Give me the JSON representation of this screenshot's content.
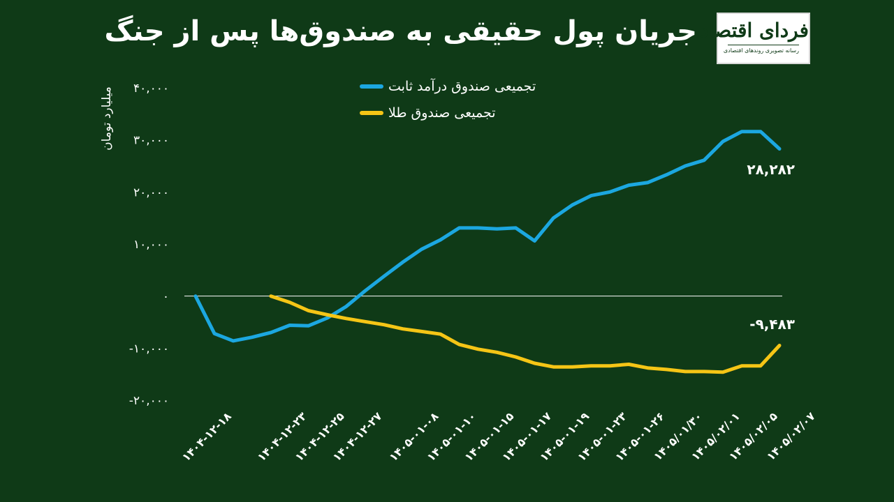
{
  "title": "جریان پول حقیقی به صندوق‌ها پس از جنگ",
  "logo": {
    "name": "فردای اقتصاد",
    "tagline": "رسانه تصویری روندهای اقتصادی"
  },
  "colors": {
    "background": "#0f3a17",
    "fixed_income": "#1ca7e0",
    "gold": "#f5c516",
    "text": "#ffffff"
  },
  "chart_data": {
    "type": "line",
    "ylabel": "میلیارد تومان",
    "ylim": [
      -20000,
      40000
    ],
    "yticks": [
      {
        "value": 40000,
        "label": "۴۰,۰۰۰"
      },
      {
        "value": 30000,
        "label": "۳۰,۰۰۰"
      },
      {
        "value": 20000,
        "label": "۲۰,۰۰۰"
      },
      {
        "value": 10000,
        "label": "۱۰,۰۰۰"
      },
      {
        "value": 0,
        "label": "۰"
      },
      {
        "value": -10000,
        "label": "-۱۰,۰۰۰"
      },
      {
        "value": -20000,
        "label": "-۲۰,۰۰۰"
      }
    ],
    "x": [
      "1404-12-18",
      "1404-12-19",
      "1404-12-20",
      "1404-12-21",
      "1404-12-23",
      "1404-12-24",
      "1404-12-25",
      "1404-12-26",
      "1404-12-27",
      "1404-12-28",
      "1405-01-05",
      "1405-01-08",
      "1405-01-09",
      "1405-01-10",
      "1405-01-14",
      "1405-01-15",
      "1405-01-16",
      "1405-01-17",
      "1405-01-18",
      "1405-01-19",
      "1405-01-22",
      "1405-01-23",
      "1405-01-24",
      "1405-01-26",
      "1405-01-29",
      "1405/01/30",
      "1405/01/31",
      "1405/02/01",
      "1405/02/02",
      "1405/02/05",
      "1405/02/06",
      "1405/02/07"
    ],
    "xtick_labels": [
      "۱۴۰۴-۱۲-۱۸",
      "۱۴۰۴-۱۲-۲۳",
      "۱۴۰۴-۱۲-۲۵",
      "۱۴۰۴-۱۲-۲۷",
      "۱۴۰۵-۰۱-۰۸",
      "۱۴۰۵-۰۱-۱۰",
      "۱۴۰۵-۰۱-۱۵",
      "۱۴۰۵-۰۱-۱۷",
      "۱۴۰۵-۰۱-۱۹",
      "۱۴۰۵-۰۱-۲۳",
      "۱۴۰۵-۰۱-۲۶",
      "۱۴۰۵/۰۱/۳۰",
      "۱۴۰۵/۰۲/۰۱",
      "۱۴۰۵/۰۲/۰۵",
      "۱۴۰۵/۰۲/۰۷"
    ],
    "xtick_dates": [
      "1404-12-18",
      "1404-12-23",
      "1404-12-25",
      "1404-12-27",
      "1405-01-08",
      "1405-01-10",
      "1405-01-15",
      "1405-01-17",
      "1405-01-19",
      "1405-01-23",
      "1405-01-26",
      "1405/01/30",
      "1405/02/01",
      "1405/02/05",
      "1405/02/07"
    ],
    "series": [
      {
        "name": "تجمیعی صندوق درآمد ثابت",
        "color": "#1ca7e0",
        "values": [
          0,
          -7200,
          -8600,
          -7900,
          -7000,
          -5600,
          -5700,
          -4200,
          -2000,
          1000,
          3800,
          6500,
          9000,
          10800,
          13100,
          13100,
          12900,
          13100,
          10600,
          15000,
          17500,
          19300,
          20000,
          21300,
          21800,
          23300,
          25000,
          26100,
          29700,
          31600,
          31600,
          28282
        ],
        "end_label": "۲۸,۲۸۲"
      },
      {
        "name": "تجمیعی صندوق طلا",
        "color": "#f5c516",
        "values": [
          null,
          null,
          null,
          null,
          0,
          -1200,
          -2800,
          -3600,
          -4300,
          -4900,
          -5500,
          -6300,
          -6800,
          -7300,
          -9300,
          -10200,
          -10800,
          -11700,
          -12900,
          -13600,
          -13600,
          -13400,
          -13400,
          -13100,
          -13800,
          -14100,
          -14500,
          -14500,
          -14600,
          -13400,
          -13400,
          -9483
        ],
        "end_label": "-۹,۴۸۳"
      }
    ],
    "legend": "top-center",
    "grid": false
  }
}
